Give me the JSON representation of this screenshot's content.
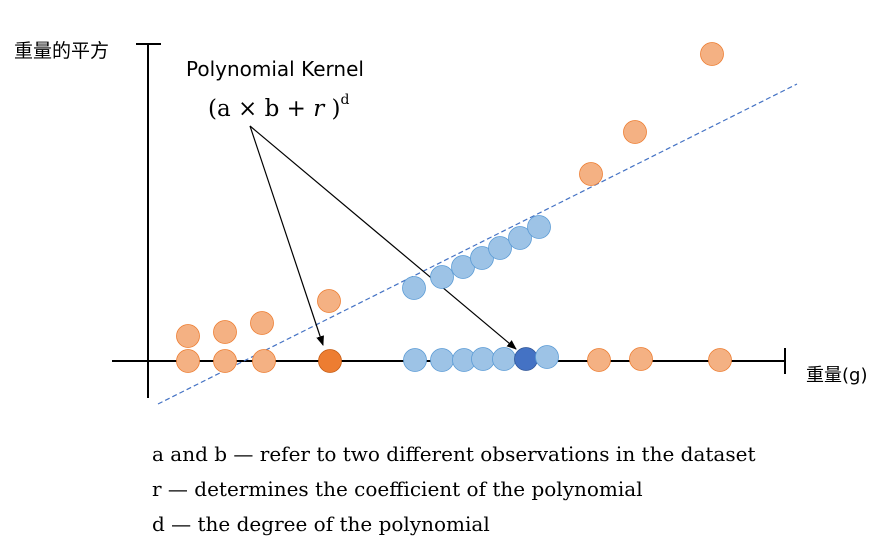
{
  "axis_labels": {
    "y": "重量的平方",
    "x": "重量(g)"
  },
  "kernel": {
    "title": "Polynomial Kernel",
    "formula_open": "(a",
    "times": "×",
    "b": "b",
    "plus": "+",
    "r": "r",
    "formula_close": ")",
    "exponent": "d"
  },
  "notes": [
    "a and b — refer to two different observations in the dataset",
    "r — determines the coefficient of the polynomial",
    "d — the degree of the polynomial"
  ],
  "colors": {
    "orange_light": "#F4B183",
    "orange_stroke": "#ED7D31",
    "orange_highlight": "#ED7D31",
    "blue_light": "#9DC3E6",
    "blue_stroke": "#5B9BD5",
    "blue_highlight": "#4472C4",
    "dashed_line": "#4472C4"
  }
}
